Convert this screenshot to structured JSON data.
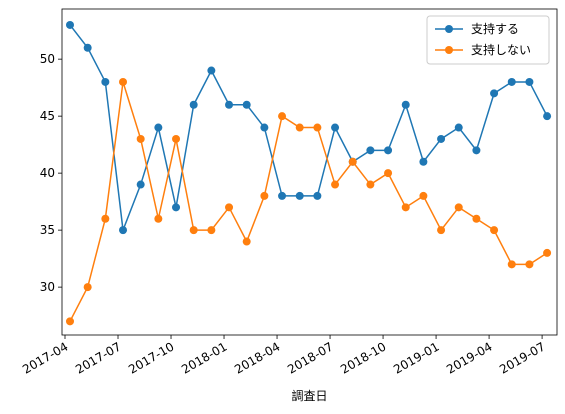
{
  "chart_data": {
    "type": "line",
    "x": [
      "2017-04",
      "2017-05",
      "2017-06",
      "2017-07",
      "2017-08",
      "2017-09",
      "2017-10",
      "2017-11",
      "2017-12",
      "2018-01",
      "2018-02",
      "2018-03",
      "2018-04",
      "2018-05",
      "2018-06",
      "2018-07",
      "2018-08",
      "2018-09",
      "2018-10",
      "2018-11",
      "2018-12",
      "2019-01",
      "2019-02",
      "2019-03",
      "2019-04",
      "2019-05",
      "2019-06",
      "2019-07"
    ],
    "series": [
      {
        "name": "支持する",
        "color": "#1f77b4",
        "values": [
          53,
          51,
          48,
          35,
          39,
          44,
          37,
          46,
          49,
          46,
          46,
          44,
          38,
          38,
          38,
          44,
          41,
          42,
          42,
          46,
          41,
          43,
          44,
          42,
          47,
          48,
          48,
          45
        ]
      },
      {
        "name": "支持しない",
        "color": "#ff7f0e",
        "values": [
          27,
          30,
          36,
          48,
          43,
          36,
          43,
          35,
          35,
          37,
          34,
          38,
          45,
          44,
          44,
          39,
          41,
          39,
          40,
          37,
          38,
          35,
          37,
          36,
          35,
          32,
          32,
          33
        ]
      }
    ],
    "xlabel": "調査日",
    "xticks": [
      "2017-04",
      "2017-07",
      "2017-10",
      "2018-01",
      "2018-04",
      "2018-07",
      "2018-10",
      "2019-01",
      "2019-04",
      "2019-07"
    ],
    "ylim": [
      25.8,
      54.4
    ],
    "yticks": [
      30,
      35,
      40,
      45,
      50
    ],
    "grid": false,
    "legend": "upper right"
  }
}
